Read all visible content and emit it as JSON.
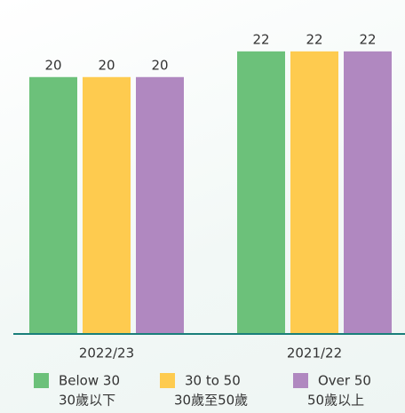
{
  "chart_data": {
    "type": "bar",
    "categories": [
      "2022/23",
      "2021/22"
    ],
    "series": [
      {
        "name": "Below 30",
        "subname": "30歲以下",
        "color": "#6cc17a",
        "values": [
          20,
          22
        ]
      },
      {
        "name": "30 to 50",
        "subname": "30歲至50歲",
        "color": "#fecb4f",
        "values": [
          20,
          22
        ]
      },
      {
        "name": "Over 50",
        "subname": "50歲以上",
        "color": "#b088c0",
        "values": [
          20,
          22
        ]
      }
    ],
    "ylim": [
      0,
      26
    ]
  }
}
